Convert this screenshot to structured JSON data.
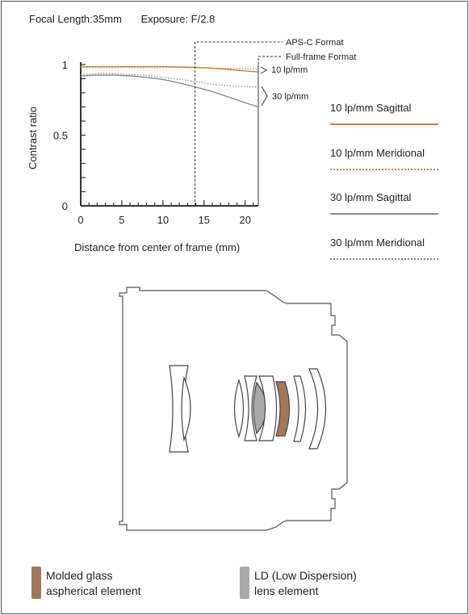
{
  "header": {
    "focal_length": "Focal Length:35mm",
    "exposure": "Exposure: F/2.8"
  },
  "colors": {
    "sagittal_10": "#c8803e",
    "meridional_10": "#c8803e",
    "sagittal_30": "#8a8a8a",
    "meridional_30": "#8a8a8a",
    "molded_glass": "#a3785a",
    "ld_element": "#a9a9a9",
    "line": "#333333"
  },
  "chart_data": {
    "type": "line",
    "xlabel": "Distance from center of frame (mm)",
    "ylabel": "Contrast ratio",
    "xlim": [
      0,
      21.6
    ],
    "ylim": [
      0,
      1
    ],
    "x_ticks": [
      "0",
      "5",
      "10",
      "15",
      "20"
    ],
    "y_ticks": [
      "0",
      "0.5",
      "1"
    ],
    "x": [
      0,
      2,
      4,
      6,
      8,
      10,
      12,
      14,
      16,
      18,
      20,
      21.6
    ],
    "series": [
      {
        "name": "10 lp/mm Sagittal",
        "style": "solid",
        "color": "#c8803e",
        "values": [
          0.985,
          0.985,
          0.985,
          0.985,
          0.985,
          0.985,
          0.983,
          0.98,
          0.975,
          0.965,
          0.955,
          0.948
        ]
      },
      {
        "name": "10 lp/mm Meridional",
        "style": "dotted",
        "color": "#c8803e",
        "values": [
          0.98,
          0.98,
          0.98,
          0.98,
          0.98,
          0.98,
          0.98,
          0.978,
          0.975,
          0.972,
          0.97,
          0.968
        ]
      },
      {
        "name": "30 lp/mm Sagittal",
        "style": "solid",
        "color": "#8a8a8a",
        "values": [
          0.92,
          0.925,
          0.925,
          0.92,
          0.91,
          0.895,
          0.87,
          0.84,
          0.81,
          0.77,
          0.73,
          0.7
        ]
      },
      {
        "name": "30 lp/mm Meridional",
        "style": "dotted",
        "color": "#8a8a8a",
        "values": [
          0.93,
          0.935,
          0.935,
          0.93,
          0.925,
          0.91,
          0.895,
          0.88,
          0.86,
          0.85,
          0.845,
          0.84
        ]
      }
    ],
    "annotations": {
      "apsc_label": "APS-C Format",
      "apsc_x": 13.9,
      "fullframe_label": "Full-frame Format",
      "fullframe_x": 21.6,
      "label_10": "10 lp/mm",
      "label_30": "30 lp/mm"
    }
  },
  "legend": [
    {
      "label": "10 lp/mm Sagittal",
      "style": "solid",
      "color": "#c8803e"
    },
    {
      "label": "10 lp/mm Meridional",
      "style": "dotted",
      "color": "#c8803e"
    },
    {
      "label": "30 lp/mm Sagittal",
      "style": "solid",
      "color": "#8a8a8a"
    },
    {
      "label": "30 lp/mm Meridional",
      "style": "dotted",
      "color": "#8a8a8a"
    }
  ],
  "key": {
    "molded_line1": "Molded glass",
    "molded_line2": "aspherical element",
    "ld_line1": "LD (Low Dispersion)",
    "ld_line2": "lens element"
  }
}
